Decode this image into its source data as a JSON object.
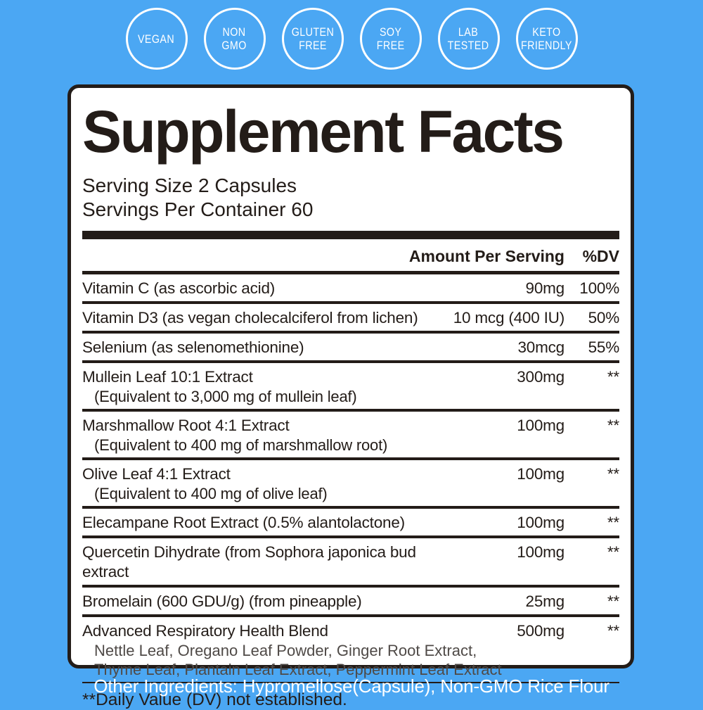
{
  "colors": {
    "background": "#4BA7F3",
    "ink": "#231C18",
    "badge_ring": "#FFFFFF",
    "muted_subtext": "#4F4A47",
    "footer_text": "#FFFFFF"
  },
  "badges": [
    {
      "lines": [
        "VEGAN"
      ]
    },
    {
      "lines": [
        "NON",
        "GMO"
      ]
    },
    {
      "lines": [
        "GLUTEN",
        "FREE"
      ]
    },
    {
      "lines": [
        "SOY",
        "FREE"
      ]
    },
    {
      "lines": [
        "LAB",
        "TESTED"
      ]
    },
    {
      "lines": [
        "KETO",
        "FRIENDLY"
      ]
    }
  ],
  "panel": {
    "title": "Supplement Facts",
    "serving_size": "Serving Size 2 Capsules",
    "servings_per_container": "Servings Per Container 60",
    "table": {
      "amount_header": "Amount Per Serving",
      "dv_header": "%DV",
      "rows": [
        {
          "name": "Vitamin C (as ascorbic acid)",
          "amount": "90mg",
          "dv": "100%",
          "sub": [],
          "sub_muted": false
        },
        {
          "name": "Vitamin D3 (as vegan cholecalciferol from lichen)",
          "amount": "10 mcg (400 IU)",
          "dv": "50%",
          "sub": [],
          "sub_muted": false
        },
        {
          "name": "Selenium (as selenomethionine)",
          "amount": "30mcg",
          "dv": "55%",
          "sub": [],
          "sub_muted": false
        },
        {
          "name": "Mullein Leaf 10:1 Extract",
          "amount": "300mg",
          "dv": "**",
          "sub": [
            "(Equivalent to 3,000 mg of mullein leaf)"
          ],
          "sub_muted": false
        },
        {
          "name": "Marshmallow Root 4:1 Extract",
          "amount": "100mg",
          "dv": "**",
          "sub": [
            "(Equivalent to 400 mg of marshmallow root)"
          ],
          "sub_muted": false
        },
        {
          "name": "Olive Leaf 4:1 Extract",
          "amount": "100mg",
          "dv": "**",
          "sub": [
            "(Equivalent to 400 mg of olive leaf)"
          ],
          "sub_muted": false
        },
        {
          "name": "Elecampane Root Extract (0.5% alantolactone)",
          "amount": "100mg",
          "dv": "**",
          "sub": [],
          "sub_muted": false
        },
        {
          "name": "Quercetin Dihydrate (from Sophora japonica bud extract",
          "amount": "100mg",
          "dv": "**",
          "sub": [],
          "sub_muted": false
        },
        {
          "name": "Bromelain (600 GDU/g) (from pineapple)",
          "amount": "25mg",
          "dv": "**",
          "sub": [],
          "sub_muted": false
        },
        {
          "name": "Advanced Respiratory Health Blend",
          "amount": "500mg",
          "dv": "**",
          "sub": [
            "Nettle Leaf, Oregano Leaf Powder, Ginger Root Extract,",
            "Thyme Leaf, Plantain Leaf Extract, Peppermint Leaf Extract"
          ],
          "sub_muted": true
        }
      ],
      "footnote": "**Daily Value (DV) not established."
    }
  },
  "footer": {
    "other_ingredients": "Other Ingredients: Hypromellose(Capsule), Non-GMO Rice Flour"
  }
}
